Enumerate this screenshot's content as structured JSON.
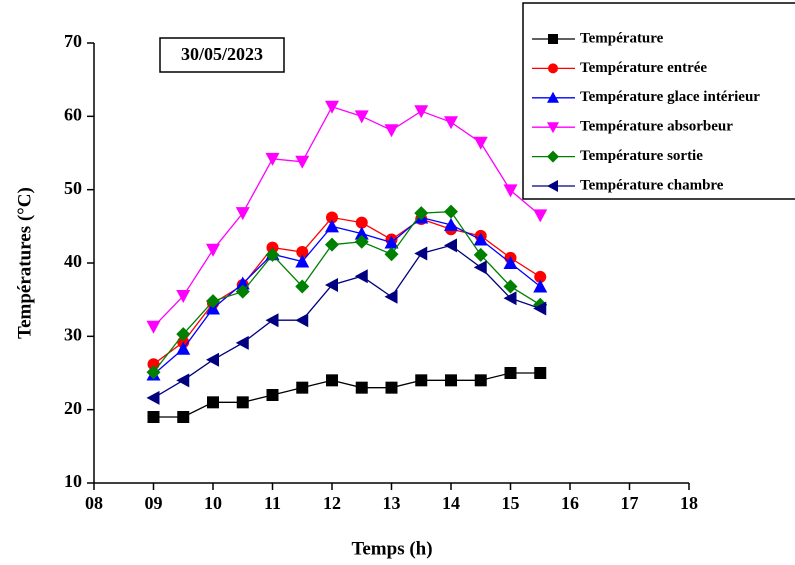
{
  "chart_data": {
    "type": "line",
    "annotation": "30/05/2023",
    "x_label": "Temps (h)",
    "y_label": "Températures (°C)",
    "x": [
      9,
      9.5,
      10,
      10.5,
      11,
      11.5,
      12,
      12.5,
      13,
      13.5,
      14,
      14.5,
      15,
      15.5
    ],
    "series": [
      {
        "name": "Température",
        "color": "#000000",
        "marker": "square",
        "values": [
          19,
          19,
          21,
          21,
          22,
          23,
          24,
          23,
          23,
          24,
          24,
          24,
          25,
          25
        ]
      },
      {
        "name": "Température entrée",
        "color": "#ff0000",
        "marker": "circle",
        "values": [
          26.2,
          29.2,
          34.5,
          37,
          42.1,
          41.5,
          46.2,
          45.5,
          43.2,
          46,
          44.6,
          43.7,
          40.7,
          38.1
        ]
      },
      {
        "name": "Température glace intérieur",
        "color": "#0000ff",
        "marker": "triangle-up",
        "values": [
          24.8,
          28.3,
          33.8,
          37.2,
          41.2,
          40.2,
          45,
          44,
          42.8,
          46.2,
          45.2,
          43.2,
          40,
          36.8
        ]
      },
      {
        "name": "Température absorbeur",
        "color": "#ff00ff",
        "marker": "triangle-down",
        "values": [
          31.3,
          35.5,
          41.8,
          46.8,
          54.2,
          53.8,
          61.3,
          60,
          58.1,
          60.7,
          59.2,
          56.4,
          49.9,
          46.5
        ]
      },
      {
        "name": "Température sortie",
        "color": "#008000",
        "marker": "diamond",
        "values": [
          25.1,
          30.3,
          34.8,
          36.1,
          41.1,
          36.8,
          42.5,
          42.9,
          41.2,
          46.8,
          47,
          41.1,
          36.8,
          34.3
        ]
      },
      {
        "name": "Température chambre",
        "color": "#000080",
        "marker": "triangle-left",
        "values": [
          21.6,
          24,
          26.8,
          29.1,
          32.2,
          32.2,
          37,
          38.2,
          35.4,
          41.3,
          42.4,
          39.4,
          35.2,
          33.8
        ]
      }
    ],
    "xlim": [
      8,
      18
    ],
    "xticks": [
      {
        "value": 8,
        "label": "08"
      },
      {
        "value": 9,
        "label": "09"
      },
      10,
      11,
      12,
      13,
      14,
      15,
      16,
      17,
      18
    ],
    "ylim": [
      10,
      70
    ],
    "yticks": [
      10,
      20,
      30,
      40,
      50,
      60,
      70
    ],
    "grid": false
  }
}
